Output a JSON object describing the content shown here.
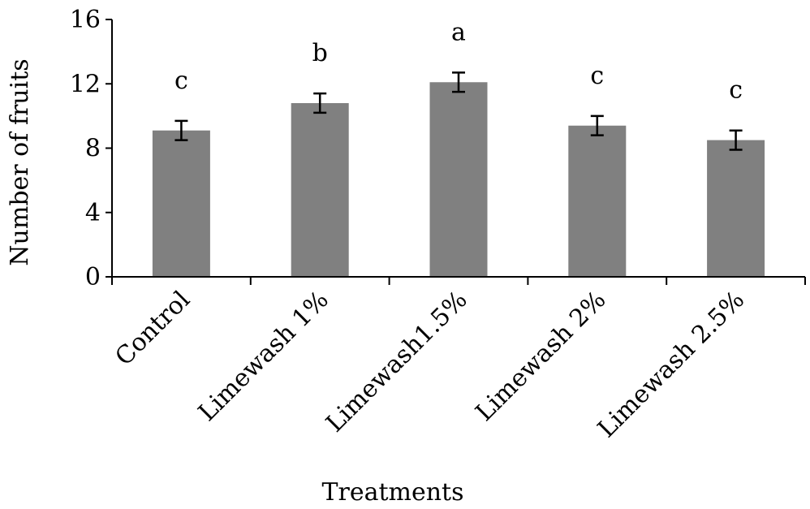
{
  "chart_data": {
    "type": "bar",
    "title": "",
    "xlabel": "Treatments",
    "ylabel": "Number of fruits",
    "categories": [
      "Control",
      "Limewash 1%",
      "Limewash1.5%",
      "Limewash 2%",
      "Limewash 2.5%"
    ],
    "values": [
      9.1,
      10.8,
      12.1,
      9.4,
      8.5
    ],
    "errors": [
      0.6,
      0.6,
      0.6,
      0.6,
      0.6
    ],
    "significance_letters": [
      "c",
      "b",
      "a",
      "c",
      "c"
    ],
    "ylim": [
      0,
      16
    ],
    "yticks": [
      0,
      4,
      8,
      12,
      16
    ],
    "grid": false,
    "legend": "none",
    "bar_color": "#808080",
    "error_bar_color": "#000000"
  }
}
